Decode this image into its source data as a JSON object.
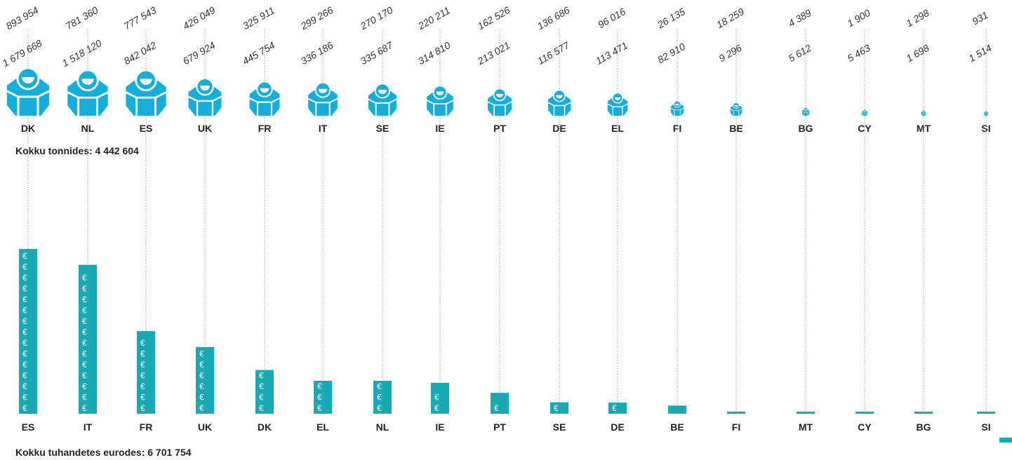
{
  "chart_data": [
    {
      "type": "pictogram",
      "color": "#13aedb",
      "categories": [
        "DK",
        "NL",
        "ES",
        "UK",
        "FR",
        "IT",
        "SE",
        "IE",
        "PT",
        "DE",
        "EL",
        "FI",
        "BE",
        "BG",
        "CY",
        "MT",
        "SI"
      ],
      "values": [
        893954,
        781360,
        777543,
        426049,
        325911,
        299266,
        270170,
        220211,
        162526,
        136686,
        96016,
        26135,
        18259,
        4389,
        1900,
        1298,
        931
      ],
      "value_labels": [
        "893 954",
        "781 360",
        "777 543",
        "426 049",
        "325 911",
        "299 266",
        "270 170",
        "220 211",
        "162 526",
        "136 686",
        "96 016",
        "26 135",
        "18 259",
        "4 389",
        "1 900",
        "1 298",
        "931"
      ],
      "caption": "Kokku tonnides: 4 442 604"
    },
    {
      "type": "bar",
      "color": "#17aab4",
      "currency_symbol": "€",
      "categories": [
        "ES",
        "IT",
        "FR",
        "UK",
        "DK",
        "EL",
        "NL",
        "IE",
        "PT",
        "SE",
        "DE",
        "BE",
        "FI",
        "MT",
        "CY",
        "BG",
        "SI"
      ],
      "values": [
        1679668,
        1518120,
        842042,
        679924,
        445754,
        336186,
        335687,
        314810,
        213021,
        116577,
        113471,
        82910,
        9296,
        5612,
        5463,
        1698,
        1514
      ],
      "value_labels": [
        "1 679 668",
        "1 518 120",
        "842 042",
        "679 924",
        "445 754",
        "336 186",
        "335 687",
        "314 810",
        "213 021",
        "116 577",
        "113 471",
        "82 910",
        "9 296",
        "5 612",
        "5 463",
        "1 698",
        "1 514"
      ],
      "caption": "Kokku tuhandetes eurodes: 6 701 754"
    }
  ]
}
